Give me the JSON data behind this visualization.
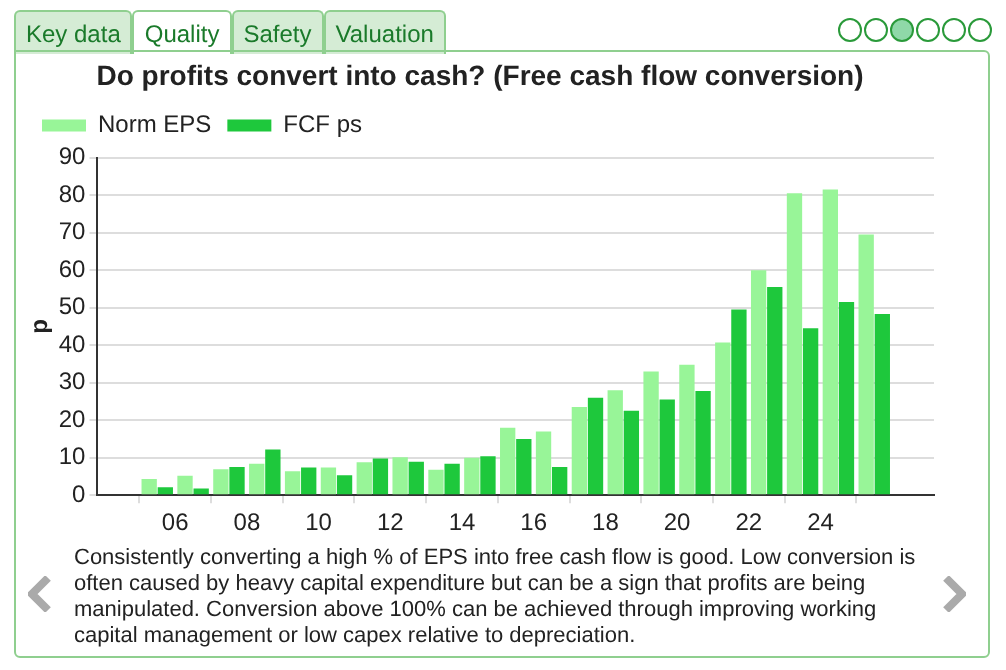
{
  "chart_data": {
    "type": "bar",
    "title": "Do profits convert into cash? (Free cash flow conversion)",
    "ylabel": "p",
    "x": [
      2005.5,
      2006.5,
      2007.5,
      2008.5,
      2009.5,
      2010.5,
      2011.5,
      2012.5,
      2013.5,
      2014.5,
      2015.5,
      2016.5,
      2017.5,
      2018.5,
      2019.5,
      2020.5,
      2021.5,
      2022.5,
      2023.5,
      2024.5,
      2025.5
    ],
    "series": [
      {
        "name": "Norm EPS",
        "color": "#98f598",
        "values": [
          4.3,
          5.2,
          6.9,
          8.4,
          6.4,
          7.4,
          8.8,
          10.1,
          6.8,
          10,
          18,
          17,
          23.5,
          28,
          33,
          34.8,
          40.7,
          60,
          80.5,
          81.5,
          69.5
        ]
      },
      {
        "name": "FCF ps",
        "color": "#1ec83c",
        "values": [
          2.1,
          1.8,
          7.5,
          12.2,
          7.4,
          5.3,
          9.8,
          8.9,
          8.4,
          10.4,
          15,
          7.5,
          26,
          22.5,
          25.5,
          27.8,
          49.5,
          55.5,
          44.5,
          51.5,
          48.3
        ]
      }
    ],
    "xlim": [
      2005,
      2026
    ],
    "xticks": [
      {
        "value": 2006,
        "label": "06"
      },
      {
        "value": 2008,
        "label": "08"
      },
      {
        "value": 2010,
        "label": "10"
      },
      {
        "value": 2012,
        "label": "12"
      },
      {
        "value": 2014,
        "label": "14"
      },
      {
        "value": 2016,
        "label": "16"
      },
      {
        "value": 2018,
        "label": "18"
      },
      {
        "value": 2020,
        "label": "20"
      },
      {
        "value": 2022,
        "label": "22"
      },
      {
        "value": 2024,
        "label": "24"
      }
    ],
    "ylim": [
      0,
      90
    ],
    "yticks": [
      0,
      10,
      20,
      30,
      40,
      50,
      60,
      70,
      80,
      90
    ],
    "grid": "y",
    "legend": "top left",
    "annotations": [
      "Key data",
      "Quality",
      "Safety",
      "Valuation",
      "Consistently converting a high % of EPS into free cash flow is good. Low conversion is often caused by heavy capital expenditure but can be a sign that profits are being manipulated. Conversion above 100% can be achieved through improving working capital management or low capex relative to depreciation."
    ]
  }
}
